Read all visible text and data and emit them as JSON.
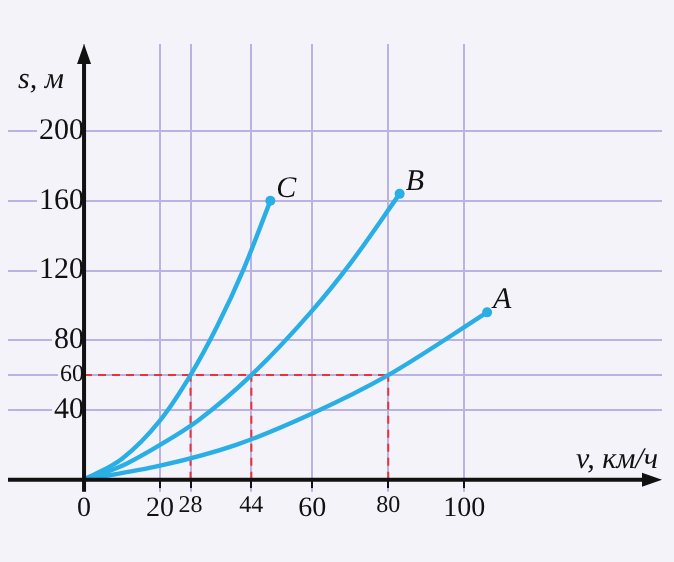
{
  "chart_data": {
    "type": "line",
    "xlabel": "v, км/ч",
    "ylabel": "s, м",
    "xlim": [
      -20,
      152
    ],
    "ylim": [
      -22,
      250
    ],
    "xticks": [
      0,
      20,
      28,
      44,
      60,
      80,
      100
    ],
    "yticks": [
      40,
      60,
      80,
      120,
      160,
      200
    ],
    "grid": true,
    "legend": false,
    "series": [
      {
        "name": "A",
        "color": "#2aaee6",
        "x": [
          0,
          20,
          40,
          60,
          80,
          106
        ],
        "values": [
          0,
          8,
          20,
          38,
          60,
          96
        ]
      },
      {
        "name": "B",
        "color": "#2aaee6",
        "x": [
          0,
          10,
          20,
          30,
          44,
          60,
          70,
          83
        ],
        "values": [
          0,
          8,
          20,
          34,
          60,
          97,
          124,
          164
        ]
      },
      {
        "name": "C",
        "color": "#2aaee6",
        "x": [
          0,
          10,
          20,
          28,
          35,
          42,
          49
        ],
        "values": [
          0,
          12,
          34,
          60,
          88,
          121,
          160
        ]
      }
    ],
    "ref_lines": [
      {
        "axis": "y",
        "value": 60,
        "color": "#e8323c",
        "line_style": "dashed"
      },
      {
        "axis": "x",
        "value": 28,
        "color": "#e8323c",
        "line_style": "dashed"
      },
      {
        "axis": "x",
        "value": 44,
        "color": "#e8323c",
        "line_style": "dashed"
      },
      {
        "axis": "x",
        "value": 80,
        "color": "#e8323c",
        "line_style": "dashed"
      }
    ]
  }
}
